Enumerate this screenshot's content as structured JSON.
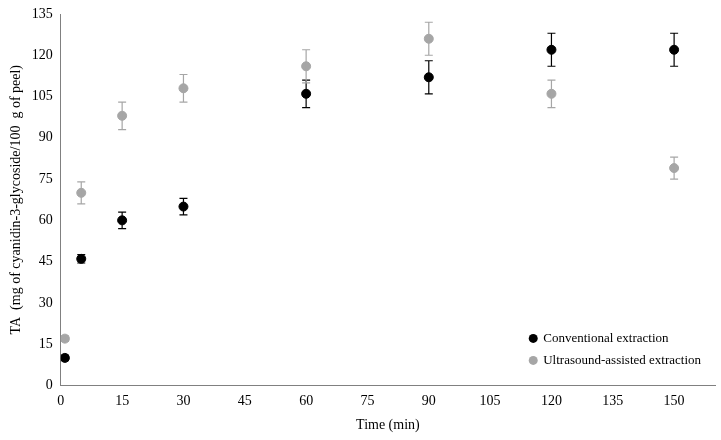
{
  "chart_data": {
    "type": "scatter",
    "x_label": "Time (min)",
    "y_label": "TA  (mg of cyanidin-3-glycoside/100  g of peel)",
    "xlim": [
      0,
      160
    ],
    "xticks": [
      0,
      15,
      30,
      45,
      60,
      75,
      90,
      105,
      120,
      135,
      150
    ],
    "ylim": [
      0,
      135
    ],
    "yticks": [
      0,
      15,
      30,
      45,
      60,
      75,
      90,
      105,
      120,
      135
    ],
    "grid": false,
    "legend": "lower right",
    "series": [
      {
        "name": "Conventional extraction",
        "color": "#000000",
        "marker": "circle",
        "x": [
          1,
          5,
          15,
          30,
          60,
          90,
          120,
          150
        ],
        "values": [
          10,
          46,
          60,
          65,
          106,
          112,
          122,
          122
        ],
        "errors": [
          1,
          1.5,
          3,
          3,
          5,
          6,
          6,
          6
        ]
      },
      {
        "name": "Ultrasound-assisted extraction",
        "color": "#a6a6a6",
        "marker": "circle",
        "x": [
          1,
          5,
          15,
          30,
          60,
          90,
          120,
          150
        ],
        "values": [
          17,
          70,
          98,
          108,
          116,
          126,
          106,
          79
        ],
        "errors": [
          1,
          4,
          5,
          5,
          6,
          6,
          5,
          4
        ]
      }
    ]
  }
}
